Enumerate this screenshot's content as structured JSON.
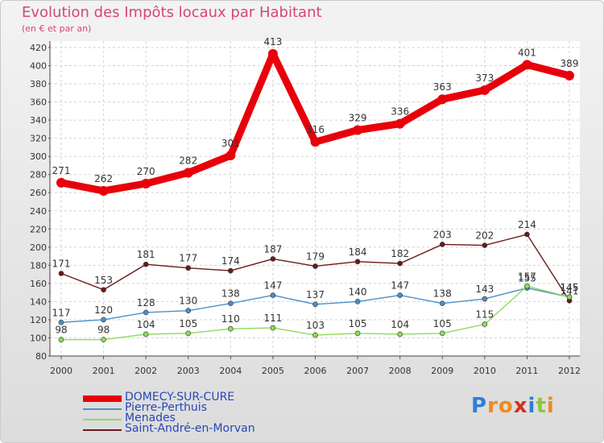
{
  "chart_data": {
    "type": "line",
    "title": "Evolution des Impôts locaux par Habitant",
    "subtitle": "(en € et par an)",
    "xlabel": "",
    "ylabel": "",
    "x": [
      "2000",
      "2001",
      "2002",
      "2003",
      "2004",
      "2005",
      "2006",
      "2007",
      "2008",
      "2009",
      "2010",
      "2011",
      "2012"
    ],
    "yticks": [
      80,
      100,
      120,
      140,
      160,
      180,
      200,
      220,
      240,
      260,
      280,
      300,
      320,
      340,
      360,
      380,
      400,
      420
    ],
    "ylim": [
      80,
      420
    ],
    "grid": true,
    "legend_position": "bottom-left",
    "series": [
      {
        "name": "DOMECY-SUR-CURE",
        "color": "#e8000b",
        "values": [
          271,
          262,
          270,
          282,
          301,
          413,
          316,
          329,
          336,
          363,
          373,
          401,
          389
        ]
      },
      {
        "name": "Pierre-Perthuis",
        "color": "#4d8fc9",
        "values": [
          117,
          120,
          128,
          130,
          138,
          147,
          137,
          140,
          147,
          138,
          143,
          155,
          145
        ]
      },
      {
        "name": "Menades",
        "color": "#8fdb5a",
        "values": [
          98,
          98,
          104,
          105,
          110,
          111,
          103,
          105,
          104,
          105,
          115,
          157,
          145
        ]
      },
      {
        "name": "Saint-André-en-Morvan",
        "color": "#6b1a1a",
        "values": [
          171,
          153,
          181,
          177,
          174,
          187,
          179,
          184,
          182,
          203,
          202,
          214,
          141
        ]
      }
    ]
  },
  "logo": {
    "letters": [
      "P",
      "r",
      "o",
      "x",
      "i",
      "t",
      "i"
    ],
    "colors": [
      "#2e7fd6",
      "#f08a1c",
      "#f08a1c",
      "#d6301c",
      "#2e7fd6",
      "#8cc63e",
      "#f08a1c"
    ]
  }
}
